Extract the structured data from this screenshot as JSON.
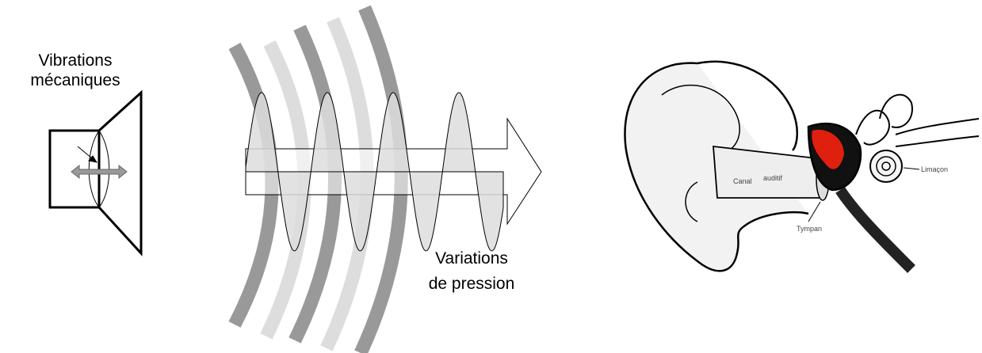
{
  "speaker": {
    "label_lines": [
      "Vibrations",
      "mécaniques"
    ]
  },
  "wave": {
    "label_lines": [
      "Variations",
      "de pression"
    ]
  },
  "ear": {
    "labels": {
      "canal_lines": [
        "Canal",
        "auditif"
      ],
      "tympan": "Tympan",
      "limacon": "Limaçon"
    }
  }
}
